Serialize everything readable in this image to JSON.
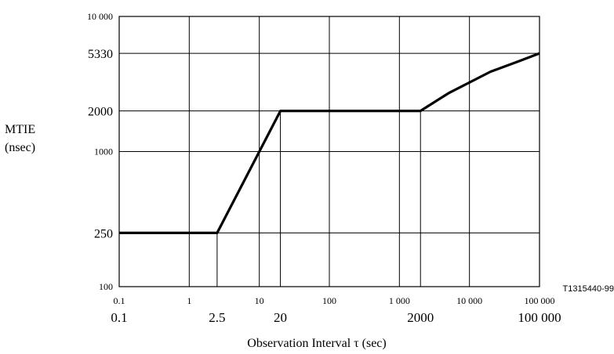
{
  "chart_data": {
    "type": "line",
    "x_scale": "log",
    "y_scale": "log",
    "xlim": [
      0.1,
      100000
    ],
    "ylim": [
      100,
      10000
    ],
    "grid": true,
    "ylabel_line1": "MTIE",
    "ylabel_line2": "(nsec)",
    "xlabel": "Observation Interval τ (sec)",
    "figure_id": "T1315440-99",
    "x_ticks": [
      {
        "value": 0.1,
        "label": "0.1"
      },
      {
        "value": 1,
        "label": "1"
      },
      {
        "value": 10,
        "label": "10"
      },
      {
        "value": 100,
        "label": "100"
      },
      {
        "value": 1000,
        "label": "1 000"
      },
      {
        "value": 10000,
        "label": "10 000"
      },
      {
        "value": 100000,
        "label": "100 000"
      }
    ],
    "x_key_values": [
      {
        "value": 0.1,
        "label": "0.1"
      },
      {
        "value": 2.5,
        "label": "2.5"
      },
      {
        "value": 20,
        "label": "20"
      },
      {
        "value": 2000,
        "label": "2000"
      },
      {
        "value": 100000,
        "label": "100 000"
      }
    ],
    "y_ticks": [
      {
        "value": 100,
        "label": "100",
        "size": "small"
      },
      {
        "value": 250,
        "label": "250",
        "size": "large"
      },
      {
        "value": 1000,
        "label": "1000",
        "size": "small"
      },
      {
        "value": 2000,
        "label": "2000",
        "size": "large"
      },
      {
        "value": 5330,
        "label": "5330",
        "size": "large"
      },
      {
        "value": 10000,
        "label": "10 000",
        "size": "small"
      }
    ],
    "extra_gridlines_x": [
      2.5,
      20,
      2000
    ],
    "series": [
      {
        "points": [
          [
            0.1,
            250
          ],
          [
            2.5,
            250
          ],
          [
            20,
            2000
          ],
          [
            2000,
            2000
          ],
          [
            5000,
            2700
          ],
          [
            20000,
            3900
          ],
          [
            50000,
            4650
          ],
          [
            100000,
            5330
          ]
        ]
      }
    ]
  }
}
